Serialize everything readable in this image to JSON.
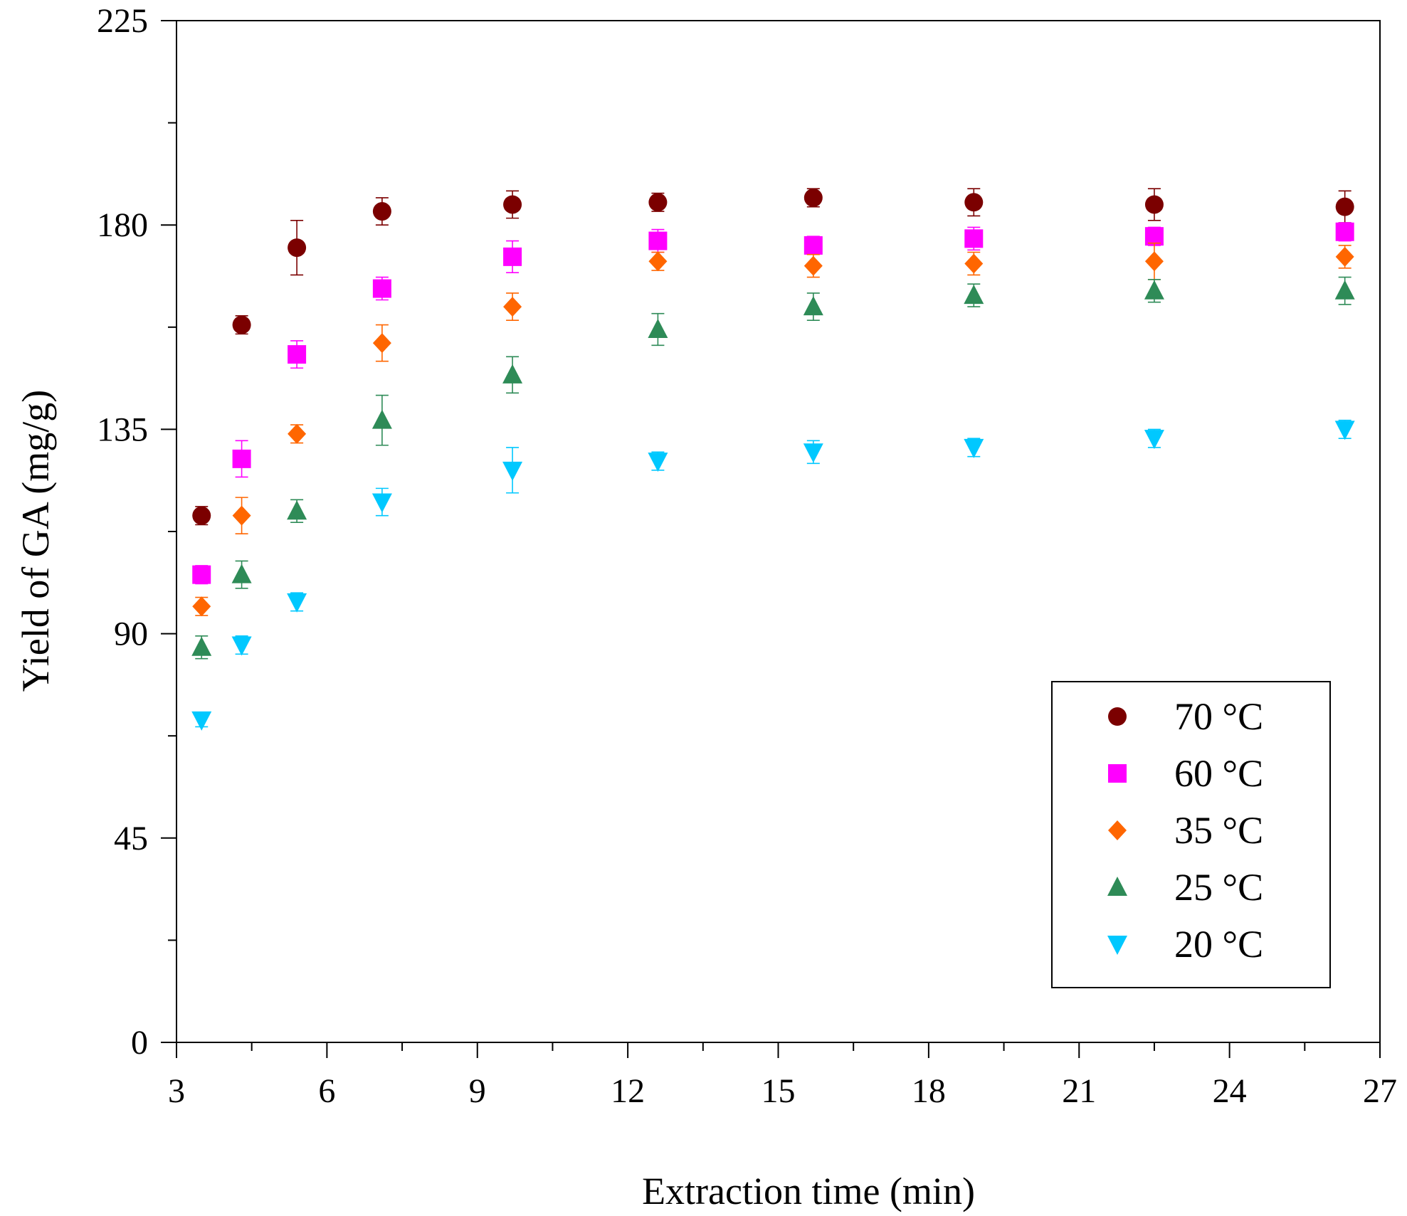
{
  "chart_data": {
    "type": "scatter",
    "title": "",
    "xlabel": "Extraction time (min)",
    "ylabel": "Yield of GA (mg/g)",
    "xlim": [
      3,
      27
    ],
    "ylim": [
      0,
      225
    ],
    "xticks": [
      3,
      6,
      9,
      12,
      15,
      18,
      21,
      24,
      27
    ],
    "yticks": [
      0,
      45,
      90,
      135,
      180,
      225
    ],
    "grid": false,
    "legend_position": "bottom-right",
    "series": [
      {
        "name": "70 °C",
        "marker": "circle",
        "color": "#7b0000",
        "x": [
          3.5,
          4.3,
          5.4,
          7.1,
          9.7,
          12.6,
          15.7,
          18.9,
          22.5,
          26.3
        ],
        "y": [
          116,
          158,
          175,
          183,
          184.5,
          185,
          186,
          185,
          184.5,
          184
        ],
        "err": [
          2,
          2,
          6,
          3,
          3,
          2,
          2,
          3,
          3.5,
          3.5
        ]
      },
      {
        "name": "60 °C",
        "marker": "square",
        "color": "#ff00ff",
        "x": [
          3.5,
          4.3,
          5.4,
          7.1,
          9.7,
          12.6,
          15.7,
          18.9,
          22.5,
          26.3
        ],
        "y": [
          103,
          128.5,
          151.5,
          166,
          173,
          176.5,
          175.5,
          177,
          177.5,
          178.5
        ],
        "err": [
          2,
          4,
          3,
          2.5,
          3.5,
          2.5,
          2,
          2.5,
          2,
          2
        ]
      },
      {
        "name": "35 °C",
        "marker": "diamond",
        "color": "#ff6600",
        "x": [
          3.5,
          4.3,
          5.4,
          7.1,
          9.7,
          12.6,
          15.7,
          18.9,
          22.5,
          26.3
        ],
        "y": [
          96,
          116,
          134,
          154,
          162,
          172,
          171,
          171.5,
          172,
          173
        ],
        "err": [
          2,
          4,
          2,
          4,
          3,
          2,
          2.5,
          2.5,
          4,
          2.5
        ]
      },
      {
        "name": "25 °C",
        "marker": "triangle-up",
        "color": "#2e8b57",
        "x": [
          3.5,
          4.3,
          5.4,
          7.1,
          9.7,
          12.6,
          15.7,
          18.9,
          22.5,
          26.3
        ],
        "y": [
          87,
          103,
          117,
          137,
          147,
          157,
          162,
          164.5,
          165.5,
          165.5
        ],
        "err": [
          2.5,
          3,
          2.5,
          5.5,
          4,
          3.5,
          3,
          2.5,
          2.5,
          3
        ]
      },
      {
        "name": "20 °C",
        "marker": "triangle-down",
        "color": "#00c8ff",
        "x": [
          3.5,
          4.3,
          5.4,
          7.1,
          9.7,
          12.6,
          15.7,
          18.9,
          22.5,
          26.3
        ],
        "y": [
          71,
          87.5,
          97,
          119,
          126,
          128,
          130,
          131,
          133,
          135
        ],
        "err": [
          1.5,
          2,
          2,
          3,
          5,
          2,
          2.5,
          2,
          2,
          2
        ]
      }
    ]
  }
}
